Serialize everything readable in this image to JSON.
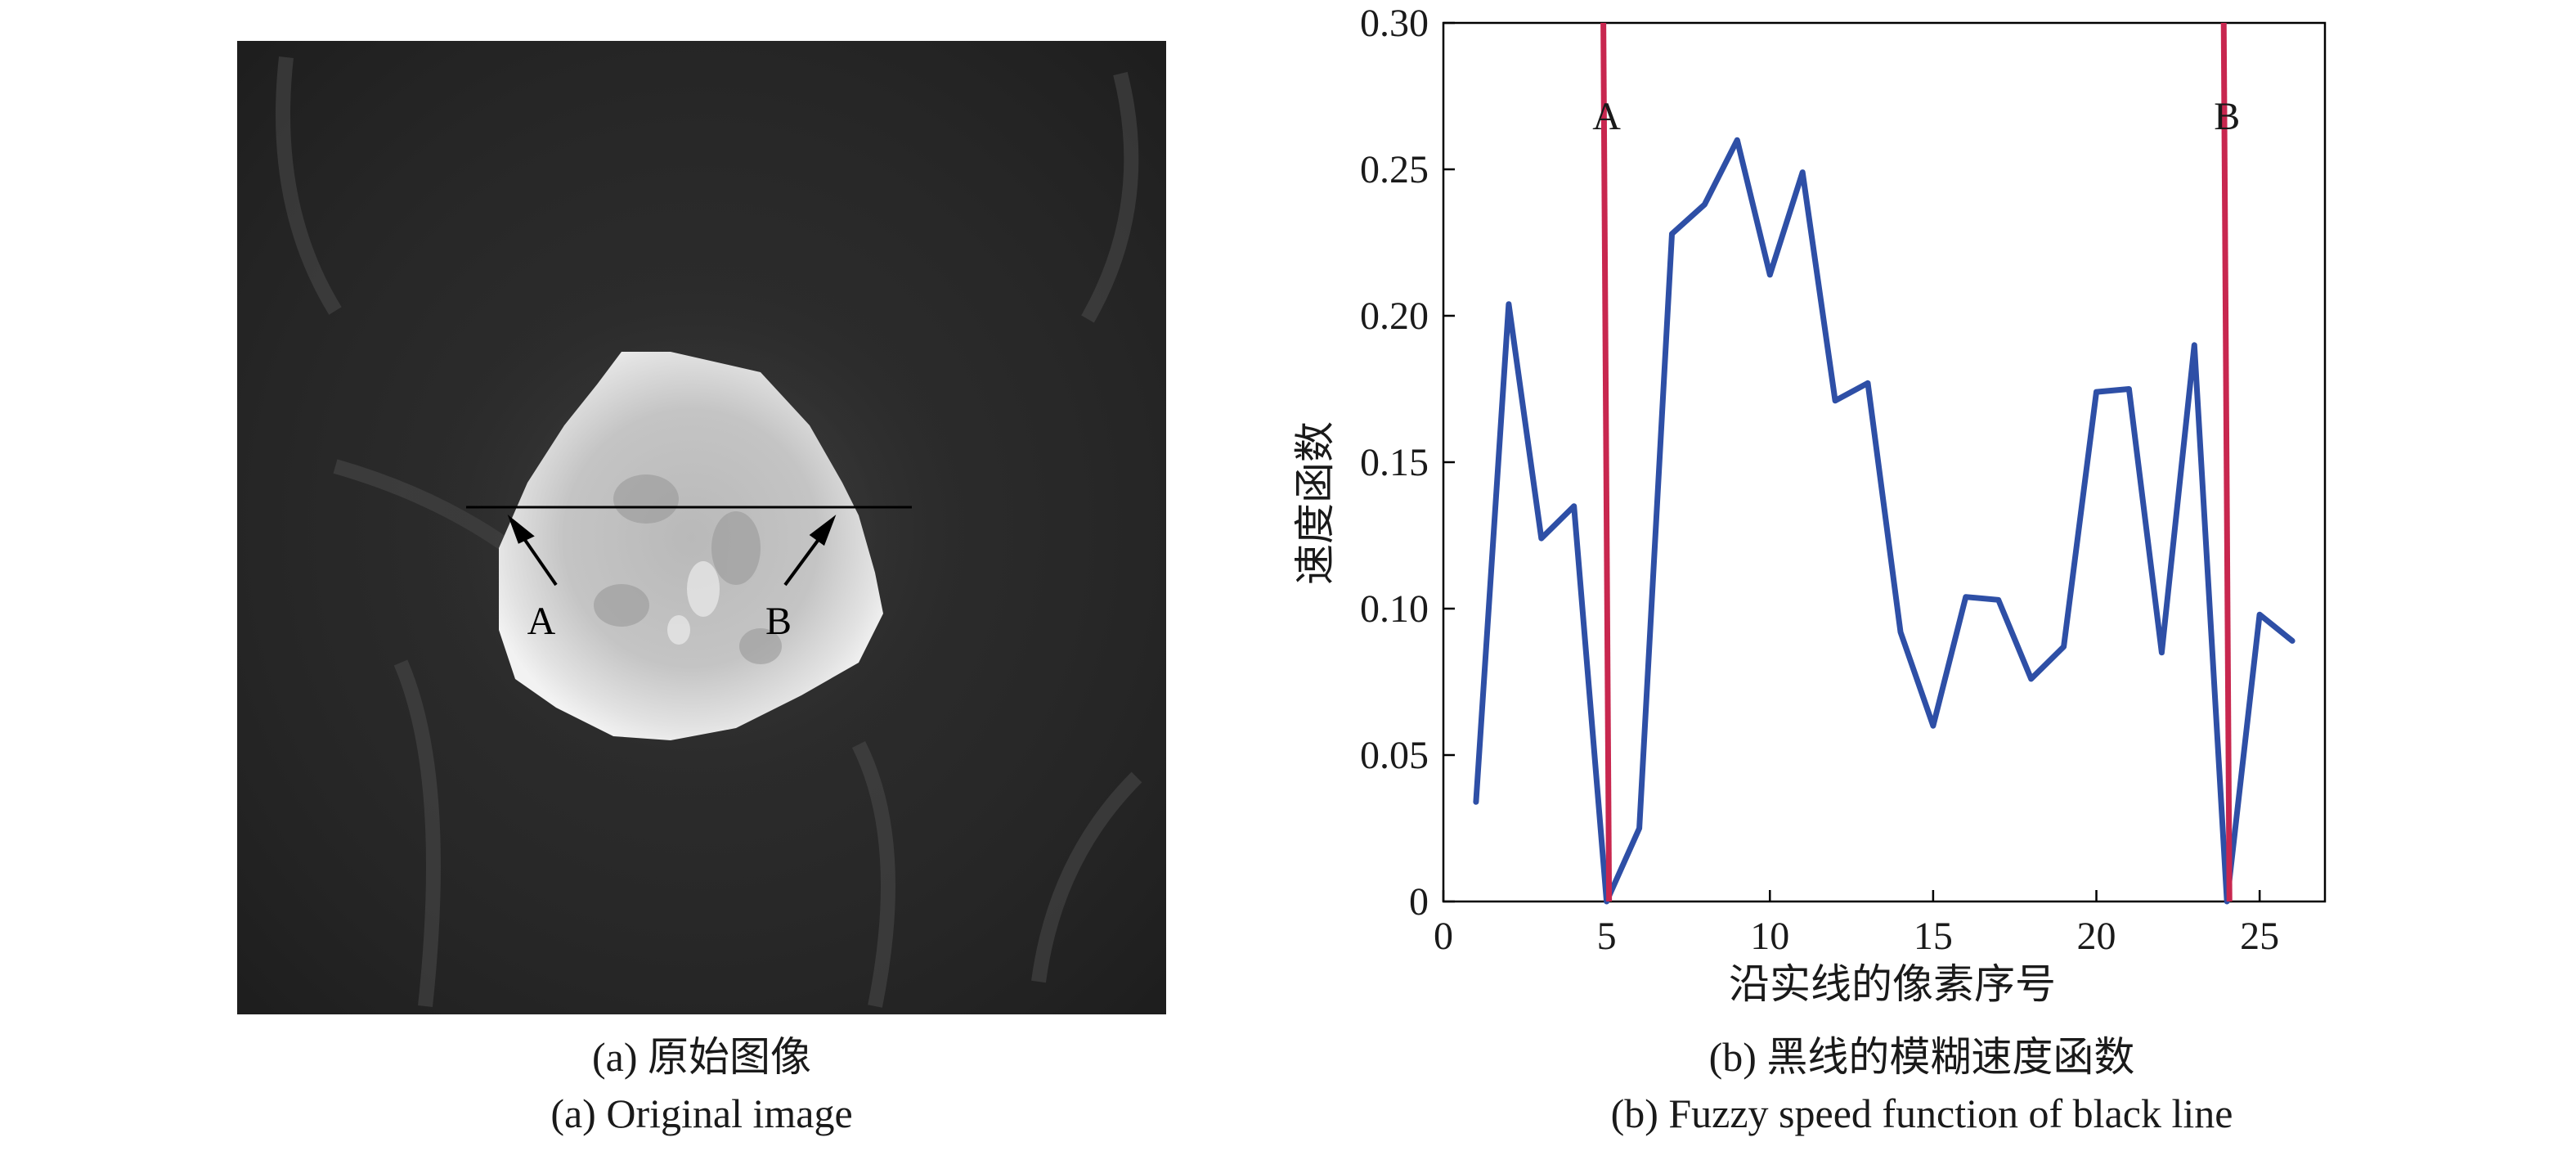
{
  "panel_a": {
    "caption_cn": "(a) 原始图像",
    "caption_en": "(a) Original image",
    "marker_a": "A",
    "marker_b": "B"
  },
  "panel_b": {
    "caption_cn": "(b) 黑线的模糊速度函数",
    "caption_en": "(b) Fuzzy speed function of black line"
  },
  "chart_data": {
    "type": "line",
    "title": "",
    "xlabel": "沿实线的像素序号",
    "ylabel": "速度函数",
    "xlim": [
      0,
      27
    ],
    "ylim": [
      0,
      0.3
    ],
    "xticks": [
      "0",
      "5",
      "10",
      "15",
      "20",
      "25"
    ],
    "yticks": [
      "0",
      "0.05",
      "0.10",
      "0.15",
      "0.20",
      "0.25",
      "0.30"
    ],
    "grid": false,
    "series": [
      {
        "color": "#2e4fa6",
        "x": [
          1,
          2,
          3,
          4,
          5,
          6,
          7,
          8,
          9,
          10,
          11,
          12,
          13,
          14,
          15,
          16,
          17,
          18,
          19,
          20,
          21,
          22,
          23,
          24,
          25,
          26
        ],
        "y": [
          0.034,
          0.204,
          0.124,
          0.135,
          0.0,
          0.025,
          0.228,
          0.238,
          0.26,
          0.214,
          0.249,
          0.171,
          0.177,
          0.092,
          0.06,
          0.104,
          0.103,
          0.076,
          0.087,
          0.174,
          0.175,
          0.085,
          0.19,
          0.0,
          0.098,
          0.089
        ]
      }
    ],
    "vlines": [
      {
        "x": 5,
        "label": "A",
        "color": "#c8274f"
      },
      {
        "x": 24,
        "label": "B",
        "color": "#c8274f"
      }
    ]
  }
}
